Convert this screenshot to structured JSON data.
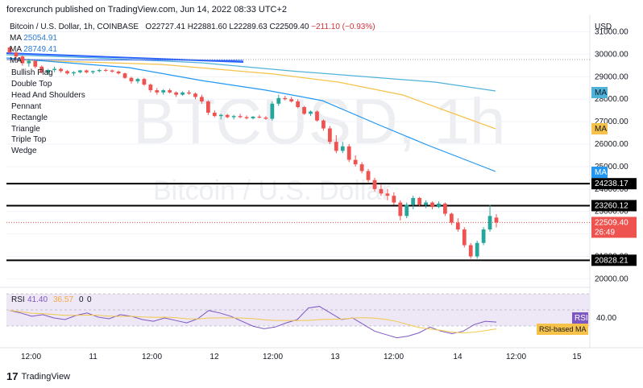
{
  "header": {
    "publisher": "forexcrunch published on TradingView.com, Jun 14, 2022 08:33 UTC+2"
  },
  "legend": {
    "symbol_line": "Bitcoin / U.S. Dollar, 1h, COINBASE",
    "o_label": "O",
    "o": "22727.41",
    "h_label": "H",
    "h": "22881.60",
    "l_label": "L",
    "l": "22289.63",
    "c_label": "C",
    "c": "22509.40",
    "chg": "−211.10 (−0.93%)",
    "ma1_label": "MA",
    "ma1": "25054.91",
    "ma2_label": "MA",
    "ma2": "28749.41",
    "ma3_label": "MA"
  },
  "patterns": [
    "Bullish Flag",
    "Double Top",
    "Head And Shoulders",
    "Pennant",
    "Rectangle",
    "Triangle",
    "Triple Top",
    "Wedge"
  ],
  "watermark": {
    "big": "BTCUSD, 1h",
    "small": "Bitcoin / U.S. Dollar"
  },
  "currency": "USD",
  "price_axis": [
    "31000.00",
    "30000.00",
    "29000.00",
    "28000.00",
    "27000.00",
    "26000.00",
    "25000.00",
    "24000.00",
    "23000.00",
    "22000.00",
    "21000.00",
    "20000.00"
  ],
  "price_badges": {
    "ma_a": "MA",
    "ma_b": "MA",
    "ma_c": "MA",
    "level1": "24238.17",
    "level2": "23260.12",
    "last": "22509.40",
    "timer": "26:49",
    "level3": "20828.21"
  },
  "rsi": {
    "label": "RSI",
    "v1": "41.40",
    "v2": "36.57",
    "v3": "0",
    "v4": "0",
    "axis": "40.00",
    "badge": "RSI",
    "ma_badge": "RSI-based MA"
  },
  "time_axis": [
    "12:00",
    "11",
    "12:00",
    "12",
    "12:00",
    "13",
    "12:00",
    "14",
    "12:00",
    "15"
  ],
  "footer": {
    "brand": "TradingView"
  },
  "colors": {
    "up": "#26a69a",
    "down": "#ef5350",
    "ma_blue": "#2196f3",
    "ma_orange": "#f6c24a",
    "ma_cyan": "#4fb3d9",
    "rsi_line": "#7e57c2",
    "rsi_ma": "#f2c94c",
    "rsi_band": "#ede7f6"
  },
  "chart_data": {
    "type": "candlestick",
    "symbol": "BTCUSD",
    "interval": "1h",
    "y_range": [
      19800,
      31700
    ],
    "horizontal_levels": [
      24238.17,
      23260.12,
      20828.21
    ],
    "last_price": 22509.4,
    "candles": [
      [
        30300,
        30350,
        30000,
        30080
      ],
      [
        30080,
        30120,
        29750,
        29900
      ],
      [
        29900,
        29950,
        29500,
        29600
      ],
      [
        29600,
        29800,
        29450,
        29700
      ],
      [
        29700,
        29750,
        29380,
        29450
      ],
      [
        29450,
        29500,
        29150,
        29200
      ],
      [
        29200,
        29350,
        29100,
        29300
      ],
      [
        29300,
        29450,
        29200,
        29350
      ],
      [
        29350,
        29400,
        29180,
        29250
      ],
      [
        29250,
        29300,
        29100,
        29150
      ],
      [
        29150,
        29250,
        29050,
        29200
      ],
      [
        29200,
        29300,
        29150,
        29280
      ],
      [
        29280,
        29320,
        29150,
        29200
      ],
      [
        29200,
        29280,
        29120,
        29250
      ],
      [
        29250,
        29350,
        29200,
        29300
      ],
      [
        29300,
        29360,
        29220,
        29280
      ],
      [
        29280,
        29320,
        29180,
        29230
      ],
      [
        29230,
        29280,
        29100,
        29150
      ],
      [
        29150,
        29180,
        28900,
        28950
      ],
      [
        28950,
        29000,
        28700,
        28800
      ],
      [
        28800,
        28950,
        28700,
        28900
      ],
      [
        28900,
        28950,
        28600,
        28650
      ],
      [
        28650,
        28700,
        28300,
        28400
      ],
      [
        28400,
        28500,
        28200,
        28300
      ],
      [
        28300,
        28450,
        28200,
        28400
      ],
      [
        28400,
        28480,
        28250,
        28300
      ],
      [
        28300,
        28350,
        28100,
        28200
      ],
      [
        28200,
        28350,
        28150,
        28300
      ],
      [
        28300,
        28400,
        28200,
        28250
      ],
      [
        28250,
        28300,
        28000,
        28100
      ],
      [
        28100,
        28200,
        27800,
        27900
      ],
      [
        27900,
        27950,
        27300,
        27400
      ],
      [
        27400,
        27500,
        27200,
        27250
      ],
      [
        27250,
        27350,
        27100,
        27300
      ],
      [
        27300,
        27350,
        27150,
        27200
      ],
      [
        27200,
        27300,
        27100,
        27250
      ],
      [
        27250,
        27350,
        27150,
        27200
      ],
      [
        27200,
        27280,
        27100,
        27150
      ],
      [
        27150,
        27250,
        27100,
        27220
      ],
      [
        27220,
        27300,
        27150,
        27180
      ],
      [
        27180,
        27250,
        27080,
        27130
      ],
      [
        27130,
        27900,
        27050,
        27800
      ],
      [
        27800,
        28200,
        27700,
        28050
      ],
      [
        28050,
        28150,
        27950,
        28000
      ],
      [
        28000,
        28100,
        27850,
        27900
      ],
      [
        27900,
        28000,
        27600,
        27650
      ],
      [
        27650,
        27700,
        27300,
        27350
      ],
      [
        27350,
        27500,
        27250,
        27450
      ],
      [
        27450,
        27500,
        27000,
        27050
      ],
      [
        27050,
        27100,
        26600,
        26700
      ],
      [
        26700,
        26800,
        26000,
        26100
      ],
      [
        26100,
        26400,
        25600,
        25700
      ],
      [
        25700,
        26100,
        25600,
        25900
      ],
      [
        25900,
        26000,
        25200,
        25300
      ],
      [
        25300,
        25500,
        25000,
        25100
      ],
      [
        25100,
        25200,
        24700,
        24800
      ],
      [
        24800,
        24900,
        24300,
        24400
      ],
      [
        24400,
        24500,
        23900,
        24000
      ],
      [
        24000,
        24200,
        23700,
        23800
      ],
      [
        23800,
        24000,
        23500,
        23700
      ],
      [
        23700,
        23850,
        23300,
        23400
      ],
      [
        23400,
        23500,
        22600,
        22800
      ],
      [
        22800,
        23400,
        22700,
        23300
      ],
      [
        23300,
        23700,
        23100,
        23600
      ],
      [
        23600,
        23650,
        23200,
        23300
      ],
      [
        23300,
        23500,
        23150,
        23400
      ],
      [
        23400,
        23450,
        23100,
        23200
      ],
      [
        23200,
        23450,
        23150,
        23350
      ],
      [
        23350,
        23400,
        22800,
        22900
      ],
      [
        22900,
        22950,
        22400,
        22500
      ],
      [
        22500,
        22700,
        22100,
        22200
      ],
      [
        22200,
        22300,
        21400,
        21500
      ],
      [
        21500,
        21600,
        20900,
        21000
      ],
      [
        21000,
        21700,
        20900,
        21600
      ],
      [
        21600,
        22300,
        21500,
        22200
      ],
      [
        22200,
        23300,
        22100,
        22800
      ],
      [
        22727.41,
        22881.6,
        22289.63,
        22509.4
      ]
    ]
  }
}
